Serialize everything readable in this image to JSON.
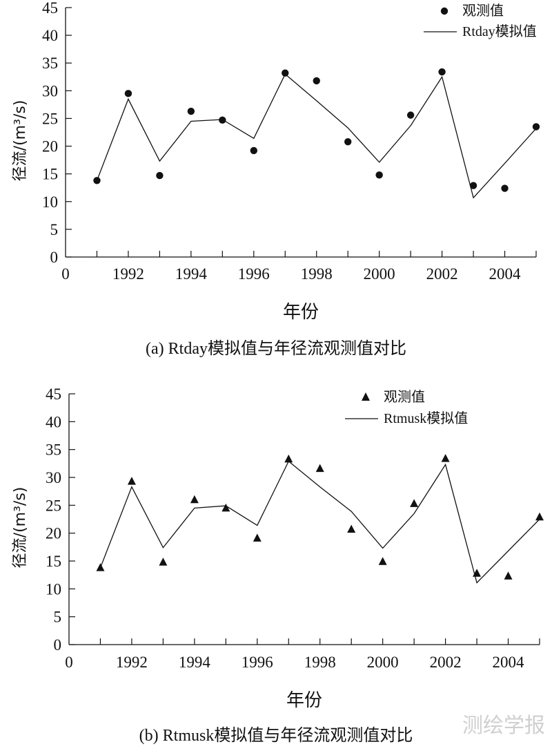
{
  "chart_data": [
    {
      "type": "line",
      "caption": "(a) Rtday模拟值与年径流观测值对比",
      "xlabel": "年份",
      "ylabel": "径流/(m³/s)",
      "ylim": [
        0,
        45
      ],
      "yticks": [
        0,
        5,
        10,
        15,
        20,
        25,
        30,
        35,
        40,
        45
      ],
      "xlim": [
        1990,
        2005
      ],
      "xticks": [
        "0",
        "1992",
        "1994",
        "1996",
        "1998",
        "2000",
        "2002",
        "2004"
      ],
      "legend_position": "top-right",
      "marker": "circle",
      "series": [
        {
          "name": "观测值",
          "style": "markers",
          "x": [
            1991,
            1992,
            1993,
            1994,
            1995,
            1996,
            1997,
            1998,
            1999,
            2000,
            2001,
            2002,
            2003,
            2004,
            2005
          ],
          "y": [
            13.8,
            29.5,
            14.7,
            26.3,
            24.7,
            19.2,
            33.2,
            31.8,
            20.8,
            14.8,
            25.6,
            33.4,
            12.9,
            12.4,
            23.5
          ]
        },
        {
          "name": "Rtday模拟值",
          "style": "line",
          "x": [
            1991,
            1992,
            1993,
            1994,
            1995,
            1996,
            1997,
            1998,
            1999,
            2000,
            2001,
            2002,
            2003,
            2004,
            2005
          ],
          "y": [
            13.8,
            28.5,
            17.3,
            24.5,
            24.8,
            21.4,
            33.0,
            28.2,
            23.3,
            17.1,
            23.7,
            32.5,
            10.7,
            16.9,
            23.2
          ]
        }
      ]
    },
    {
      "type": "line",
      "caption": "(b) Rtmusk模拟值与年径流观测值对比",
      "xlabel": "年份",
      "ylabel": "径流/(m³/s)",
      "ylim": [
        0,
        45
      ],
      "yticks": [
        0,
        5,
        10,
        15,
        20,
        25,
        30,
        35,
        40,
        45
      ],
      "xlim": [
        1990,
        2005
      ],
      "xticks": [
        "0",
        "1992",
        "1994",
        "1996",
        "1998",
        "2000",
        "2002",
        "2004"
      ],
      "legend_position": "top-right",
      "marker": "triangle",
      "series": [
        {
          "name": "观测值",
          "style": "markers",
          "x": [
            1991,
            1992,
            1993,
            1994,
            1995,
            1996,
            1997,
            1998,
            1999,
            2000,
            2001,
            2002,
            2003,
            2004,
            2005
          ],
          "y": [
            13.8,
            29.3,
            14.8,
            26.0,
            24.5,
            19.1,
            33.3,
            31.6,
            20.7,
            14.9,
            25.3,
            33.4,
            12.8,
            12.3,
            22.9
          ]
        },
        {
          "name": "Rtmusk模拟值",
          "style": "line",
          "x": [
            1991,
            1992,
            1993,
            1994,
            1995,
            1996,
            1997,
            1998,
            1999,
            2000,
            2001,
            2002,
            2003,
            2004,
            2005
          ],
          "y": [
            13.8,
            28.3,
            17.4,
            24.5,
            24.9,
            21.4,
            32.9,
            28.3,
            23.9,
            17.3,
            23.5,
            32.3,
            11.1,
            16.8,
            22.5
          ]
        }
      ]
    }
  ],
  "watermark": "测绘学报"
}
